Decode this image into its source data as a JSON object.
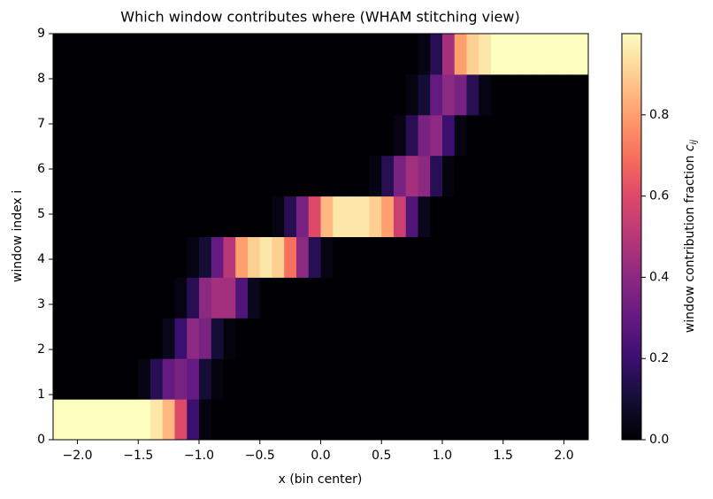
{
  "chart_data": {
    "type": "heatmap",
    "title": "Which window contributes where (WHAM stitching view)",
    "xlabel": "x (bin center)",
    "ylabel": "window index i",
    "colorbar_label": "window contribution fraction",
    "colorbar_symbol": "c",
    "colorbar_subscript": "ij",
    "colormap": "magma",
    "xlim": [
      -2.2,
      2.2
    ],
    "ylim": [
      0,
      9
    ],
    "clim": [
      0,
      1
    ],
    "xticks": [
      {
        "value": -2,
        "label": "−2.0"
      },
      {
        "value": -1.5,
        "label": "−1.5"
      },
      {
        "value": -1,
        "label": "−1.0"
      },
      {
        "value": -0.5,
        "label": "−0.5"
      },
      {
        "value": 0,
        "label": "0.0"
      },
      {
        "value": 0.5,
        "label": "0.5"
      },
      {
        "value": 1,
        "label": "1.0"
      },
      {
        "value": 1.5,
        "label": "1.5"
      },
      {
        "value": 2,
        "label": "2.0"
      }
    ],
    "yticks": [
      0,
      1,
      2,
      3,
      4,
      5,
      6,
      7,
      8,
      9
    ],
    "cticks": [
      {
        "value": 0,
        "label": "0.0"
      },
      {
        "value": 0.2,
        "label": "0.2"
      },
      {
        "value": 0.4,
        "label": "0.4"
      },
      {
        "value": 0.6,
        "label": "0.6"
      },
      {
        "value": 0.8,
        "label": "0.8"
      }
    ],
    "z": [
      [
        1,
        1,
        1,
        1,
        1,
        1,
        1,
        1,
        0.95,
        0.85,
        0.6,
        0.2,
        0.02,
        0,
        0,
        0,
        0,
        0,
        0,
        0,
        0,
        0,
        0,
        0,
        0,
        0,
        0,
        0,
        0,
        0,
        0,
        0,
        0,
        0,
        0,
        0,
        0,
        0,
        0,
        0,
        0,
        0,
        0,
        0
      ],
      [
        0,
        0,
        0,
        0,
        0,
        0,
        0,
        0.03,
        0.15,
        0.3,
        0.35,
        0.3,
        0.1,
        0.02,
        0,
        0,
        0,
        0,
        0,
        0,
        0,
        0,
        0,
        0,
        0,
        0,
        0,
        0,
        0,
        0,
        0,
        0,
        0,
        0,
        0,
        0,
        0,
        0,
        0,
        0,
        0,
        0,
        0,
        0
      ],
      [
        0,
        0,
        0,
        0,
        0,
        0,
        0,
        0,
        0,
        0.05,
        0.2,
        0.4,
        0.35,
        0.1,
        0.02,
        0,
        0,
        0,
        0,
        0,
        0,
        0,
        0,
        0,
        0,
        0,
        0,
        0,
        0,
        0,
        0,
        0,
        0,
        0,
        0,
        0,
        0,
        0,
        0,
        0,
        0,
        0,
        0,
        0
      ],
      [
        0,
        0,
        0,
        0,
        0,
        0,
        0,
        0,
        0,
        0,
        0.03,
        0.15,
        0.4,
        0.45,
        0.45,
        0.25,
        0.05,
        0,
        0,
        0,
        0,
        0,
        0,
        0,
        0,
        0,
        0,
        0,
        0,
        0,
        0,
        0,
        0,
        0,
        0,
        0,
        0,
        0,
        0,
        0,
        0,
        0,
        0,
        0
      ],
      [
        0,
        0,
        0,
        0,
        0,
        0,
        0,
        0,
        0,
        0,
        0,
        0.03,
        0.1,
        0.3,
        0.5,
        0.8,
        0.9,
        0.95,
        0.9,
        0.7,
        0.4,
        0.15,
        0.03,
        0,
        0,
        0,
        0,
        0,
        0,
        0,
        0,
        0,
        0,
        0,
        0,
        0,
        0,
        0,
        0,
        0,
        0,
        0,
        0,
        0
      ],
      [
        0,
        0,
        0,
        0,
        0,
        0,
        0,
        0,
        0,
        0,
        0,
        0,
        0,
        0,
        0,
        0,
        0,
        0,
        0.03,
        0.15,
        0.35,
        0.6,
        0.85,
        0.95,
        0.95,
        0.95,
        0.9,
        0.8,
        0.55,
        0.25,
        0.05,
        0,
        0,
        0,
        0,
        0,
        0,
        0,
        0,
        0,
        0,
        0,
        0,
        0
      ],
      [
        0,
        0,
        0,
        0,
        0,
        0,
        0,
        0,
        0,
        0,
        0,
        0,
        0,
        0,
        0,
        0,
        0,
        0,
        0,
        0,
        0,
        0,
        0,
        0,
        0,
        0,
        0.03,
        0.15,
        0.35,
        0.45,
        0.4,
        0.15,
        0.02,
        0,
        0,
        0,
        0,
        0,
        0,
        0,
        0,
        0,
        0,
        0
      ],
      [
        0,
        0,
        0,
        0,
        0,
        0,
        0,
        0,
        0,
        0,
        0,
        0,
        0,
        0,
        0,
        0,
        0,
        0,
        0,
        0,
        0,
        0,
        0,
        0,
        0,
        0,
        0,
        0,
        0.03,
        0.15,
        0.35,
        0.4,
        0.2,
        0.03,
        0,
        0,
        0,
        0,
        0,
        0,
        0,
        0,
        0,
        0
      ],
      [
        0,
        0,
        0,
        0,
        0,
        0,
        0,
        0,
        0,
        0,
        0,
        0,
        0,
        0,
        0,
        0,
        0,
        0,
        0,
        0,
        0,
        0,
        0,
        0,
        0,
        0,
        0,
        0,
        0,
        0.03,
        0.1,
        0.3,
        0.4,
        0.35,
        0.15,
        0.03,
        0,
        0,
        0,
        0,
        0,
        0,
        0,
        0
      ],
      [
        0,
        0,
        0,
        0,
        0,
        0,
        0,
        0,
        0,
        0,
        0,
        0,
        0,
        0,
        0,
        0,
        0,
        0,
        0,
        0,
        0,
        0,
        0,
        0,
        0,
        0,
        0,
        0,
        0,
        0,
        0.03,
        0.15,
        0.45,
        0.8,
        0.9,
        0.95,
        1,
        1,
        1,
        1,
        1,
        1,
        1,
        1
      ]
    ]
  }
}
